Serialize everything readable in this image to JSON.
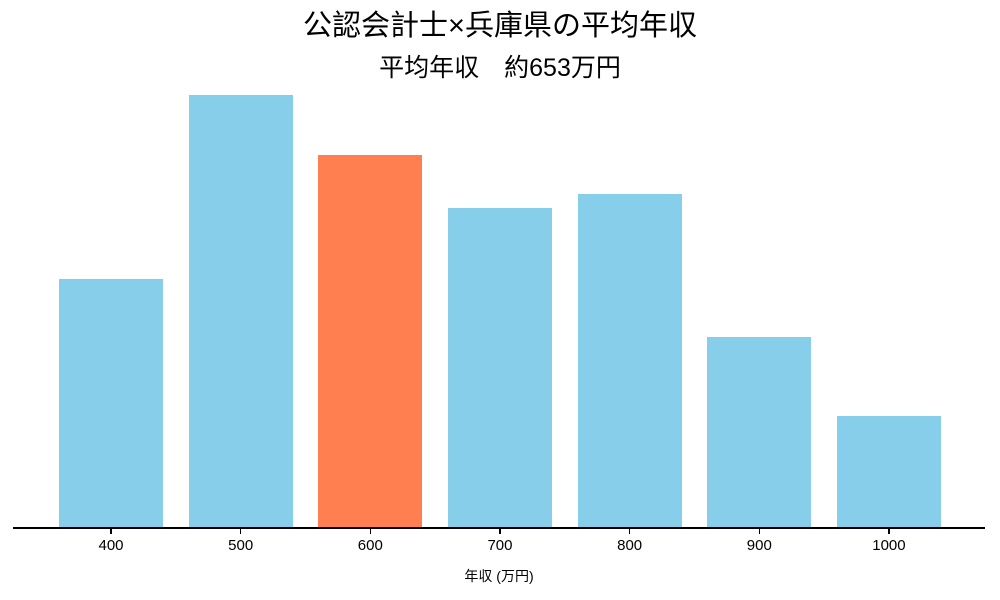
{
  "title": {
    "line1": "公認会計士×兵庫県の平均年収",
    "line2": "平均年収　約653万円"
  },
  "chart_data": {
    "type": "bar",
    "categories": [
      "400",
      "500",
      "600",
      "700",
      "800",
      "900",
      "1000"
    ],
    "values": [
      57.5,
      100,
      86.1,
      73.9,
      77.1,
      44.1,
      25.9
    ],
    "values_unit": "relative bar height, tallest bar = 100 (no y-axis shown)",
    "title": "公認会計士×兵庫県の平均年収",
    "subtitle": "平均年収　約653万円",
    "xlabel": "年収 (万円)",
    "ylabel": "",
    "ylim": [
      0,
      100
    ],
    "grid": false,
    "legend": false,
    "y_axis_visible": false,
    "bar_color": "#87CEEB",
    "highlight_index": 2,
    "highlight_category": "600",
    "highlight_color": "#FF7F50",
    "axis_color": "#000000",
    "background_color": "#FFFFFF"
  }
}
